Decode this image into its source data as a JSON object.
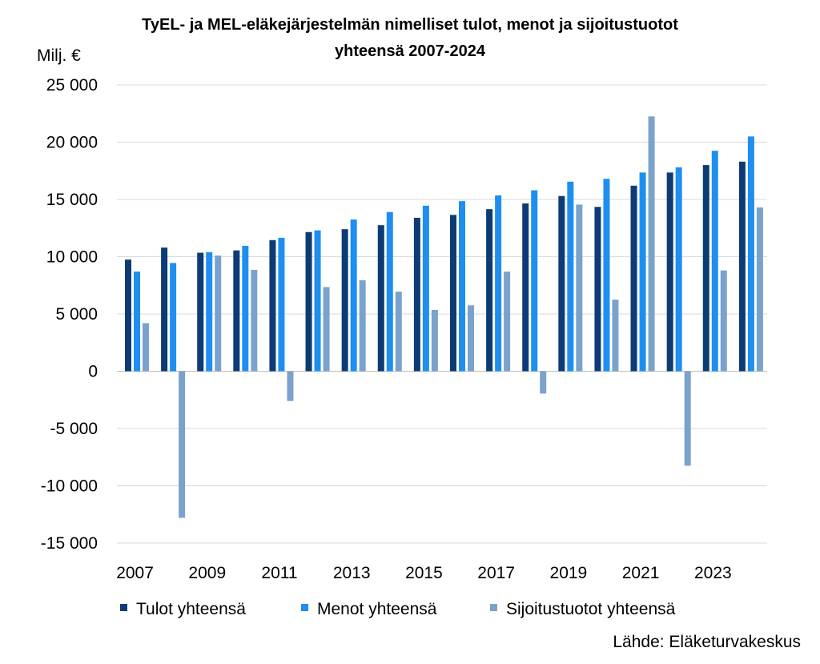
{
  "chart_data": {
    "type": "bar",
    "title_line1": "TyEL- ja MEL-eläkejärjestelmän nimelliset tulot, menot ja sijoitustuotot",
    "title_line2": "yhteensä 2007-2024",
    "unit_label": "Milj. €",
    "source": "Lähde: Eläketurvakeskus",
    "ylim": [
      -15000,
      25000
    ],
    "yticks": [
      25000,
      20000,
      15000,
      10000,
      5000,
      0,
      -5000,
      -10000,
      -15000
    ],
    "ytick_labels": [
      "25 000",
      "20 000",
      "15 000",
      "10 000",
      "5 000",
      "0",
      "-5 000",
      "-10 000",
      "-15 000"
    ],
    "categories": [
      "2007",
      "2008",
      "2009",
      "2010",
      "2011",
      "2012",
      "2013",
      "2014",
      "2015",
      "2016",
      "2017",
      "2018",
      "2019",
      "2020",
      "2021",
      "2022",
      "2023",
      "2024"
    ],
    "xtick_labels": [
      "2007",
      "",
      "2009",
      "",
      "2011",
      "",
      "2013",
      "",
      "2015",
      "",
      "2017",
      "",
      "2019",
      "",
      "2021",
      "",
      "2023",
      ""
    ],
    "grid": true,
    "legend_position": "bottom",
    "series": [
      {
        "name": "Tulot yhteensä",
        "color": "#0d3b75",
        "values": [
          9750,
          10800,
          10350,
          10550,
          11450,
          12150,
          12400,
          12750,
          13400,
          13650,
          14150,
          14650,
          15300,
          14350,
          16200,
          17350,
          18000,
          18300
        ]
      },
      {
        "name": "Menot yhteensä",
        "color": "#1e8ff0",
        "values": [
          8700,
          9450,
          10400,
          10950,
          11650,
          12300,
          13250,
          13900,
          14450,
          14850,
          15350,
          15800,
          16550,
          16800,
          17350,
          17800,
          19250,
          20500
        ]
      },
      {
        "name": "Sijoitustuotot yhteensä",
        "color": "#7aa2cc",
        "values": [
          4200,
          -12800,
          10100,
          8850,
          -2600,
          7350,
          7950,
          6950,
          5350,
          5750,
          8700,
          -1950,
          14550,
          6250,
          22250,
          -8250,
          8800,
          14300
        ]
      }
    ]
  }
}
